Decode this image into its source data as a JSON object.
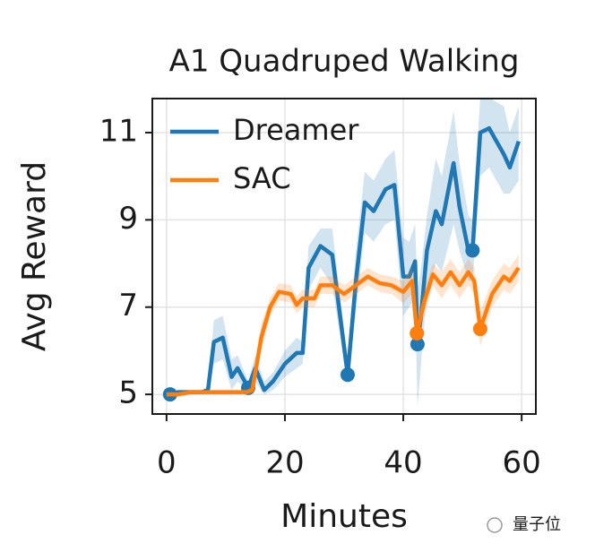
{
  "chart_data": {
    "type": "line",
    "title": "A1 Quadruped Walking",
    "xlabel": "Minutes",
    "ylabel": "Avg Reward",
    "xlim": [
      -2.4,
      62.4
    ],
    "ylim": [
      4.55,
      11.78
    ],
    "xticks": [
      0,
      20,
      40,
      60
    ],
    "yticks": [
      5,
      7,
      9,
      11
    ],
    "grid": true,
    "legend": "upper left",
    "watermark": "量子位",
    "series": [
      {
        "name": "Dreamer",
        "color": "#1f77b4",
        "x": [
          0,
          2,
          4,
          6,
          7,
          8,
          9.5,
          11,
          12,
          13.8,
          15,
          16.5,
          18,
          20,
          22,
          23,
          24,
          26,
          28,
          30.6,
          32,
          33.5,
          35,
          37,
          38.5,
          40,
          41,
          42,
          42.4,
          43,
          44,
          45.5,
          46.5,
          48.5,
          49.5,
          51,
          51.7,
          53,
          54.5,
          57,
          58,
          59.5
        ],
        "values": [
          5.0,
          5.05,
          5.05,
          5.05,
          5.1,
          6.2,
          6.3,
          5.4,
          5.6,
          5.15,
          5.6,
          5.1,
          5.3,
          5.7,
          5.95,
          5.95,
          7.9,
          8.4,
          8.2,
          5.45,
          7.6,
          9.4,
          9.2,
          9.7,
          9.8,
          7.7,
          7.7,
          8.05,
          6.15,
          6.8,
          8.3,
          9.2,
          8.9,
          10.3,
          9.3,
          8.3,
          8.3,
          11.0,
          11.1,
          10.5,
          10.2,
          10.8
        ],
        "lower": [
          4.95,
          5.0,
          5.0,
          5.0,
          5.0,
          5.7,
          5.8,
          5.1,
          5.3,
          5.05,
          5.3,
          5.0,
          5.1,
          5.4,
          5.6,
          5.7,
          7.4,
          7.9,
          7.5,
          5.2,
          6.9,
          8.7,
          8.5,
          8.9,
          9.0,
          6.8,
          7.0,
          7.2,
          4.7,
          5.7,
          7.3,
          8.0,
          7.8,
          8.9,
          8.3,
          7.6,
          7.6,
          10.0,
          10.2,
          9.6,
          9.6,
          9.9
        ],
        "upper": [
          5.05,
          5.1,
          5.1,
          5.1,
          5.2,
          6.7,
          6.8,
          5.8,
          5.9,
          5.3,
          5.9,
          5.3,
          5.5,
          6.0,
          6.3,
          6.2,
          8.4,
          8.8,
          8.8,
          5.8,
          8.3,
          10.1,
          9.9,
          10.4,
          10.6,
          8.6,
          8.5,
          8.9,
          7.4,
          7.9,
          9.1,
          10.4,
          10.0,
          11.5,
          10.3,
          9.1,
          9.0,
          11.8,
          11.8,
          11.6,
          11.0,
          11.6
        ],
        "markers": {
          "x": [
            0.6,
            13.8,
            30.6,
            42.4,
            51.7
          ],
          "values": [
            5.0,
            5.15,
            5.45,
            6.15,
            8.3
          ]
        }
      },
      {
        "name": "SAC",
        "color": "#ff7f0e",
        "x": [
          0,
          2,
          4,
          8,
          13.5,
          14.5,
          16,
          17.5,
          19,
          21,
          22,
          23,
          25,
          26,
          28,
          30,
          32,
          34,
          36,
          38,
          40,
          41.5,
          42.3,
          43.5,
          45,
          46.5,
          48,
          49.5,
          51,
          52,
          53,
          55,
          57,
          58,
          59.5
        ],
        "values": [
          5.0,
          5.0,
          5.05,
          5.05,
          5.05,
          5.1,
          6.3,
          7.0,
          7.35,
          7.3,
          7.05,
          7.2,
          7.2,
          7.5,
          7.5,
          7.3,
          7.5,
          7.7,
          7.55,
          7.5,
          7.35,
          7.6,
          6.4,
          7.1,
          7.75,
          7.5,
          7.8,
          7.5,
          7.8,
          7.6,
          6.5,
          7.3,
          7.7,
          7.6,
          7.9
        ],
        "lower": [
          4.95,
          4.95,
          5.0,
          5.0,
          5.0,
          5.0,
          6.0,
          6.8,
          7.15,
          7.1,
          6.85,
          7.0,
          7.0,
          7.3,
          7.3,
          7.1,
          7.3,
          7.5,
          7.35,
          7.3,
          7.1,
          7.3,
          6.1,
          6.8,
          7.5,
          7.2,
          7.5,
          7.2,
          7.5,
          7.3,
          6.1,
          7.0,
          7.4,
          7.3,
          7.6
        ],
        "upper": [
          5.05,
          5.05,
          5.1,
          5.1,
          5.1,
          5.2,
          6.6,
          7.2,
          7.55,
          7.5,
          7.25,
          7.4,
          7.4,
          7.7,
          7.7,
          7.5,
          7.7,
          7.9,
          7.75,
          7.7,
          7.6,
          7.9,
          6.8,
          7.4,
          8.0,
          7.8,
          8.1,
          7.8,
          8.1,
          7.9,
          6.9,
          7.6,
          8.0,
          7.9,
          8.2
        ],
        "markers": {
          "x": [
            42.3,
            53
          ],
          "values": [
            6.4,
            6.5
          ]
        }
      }
    ]
  }
}
